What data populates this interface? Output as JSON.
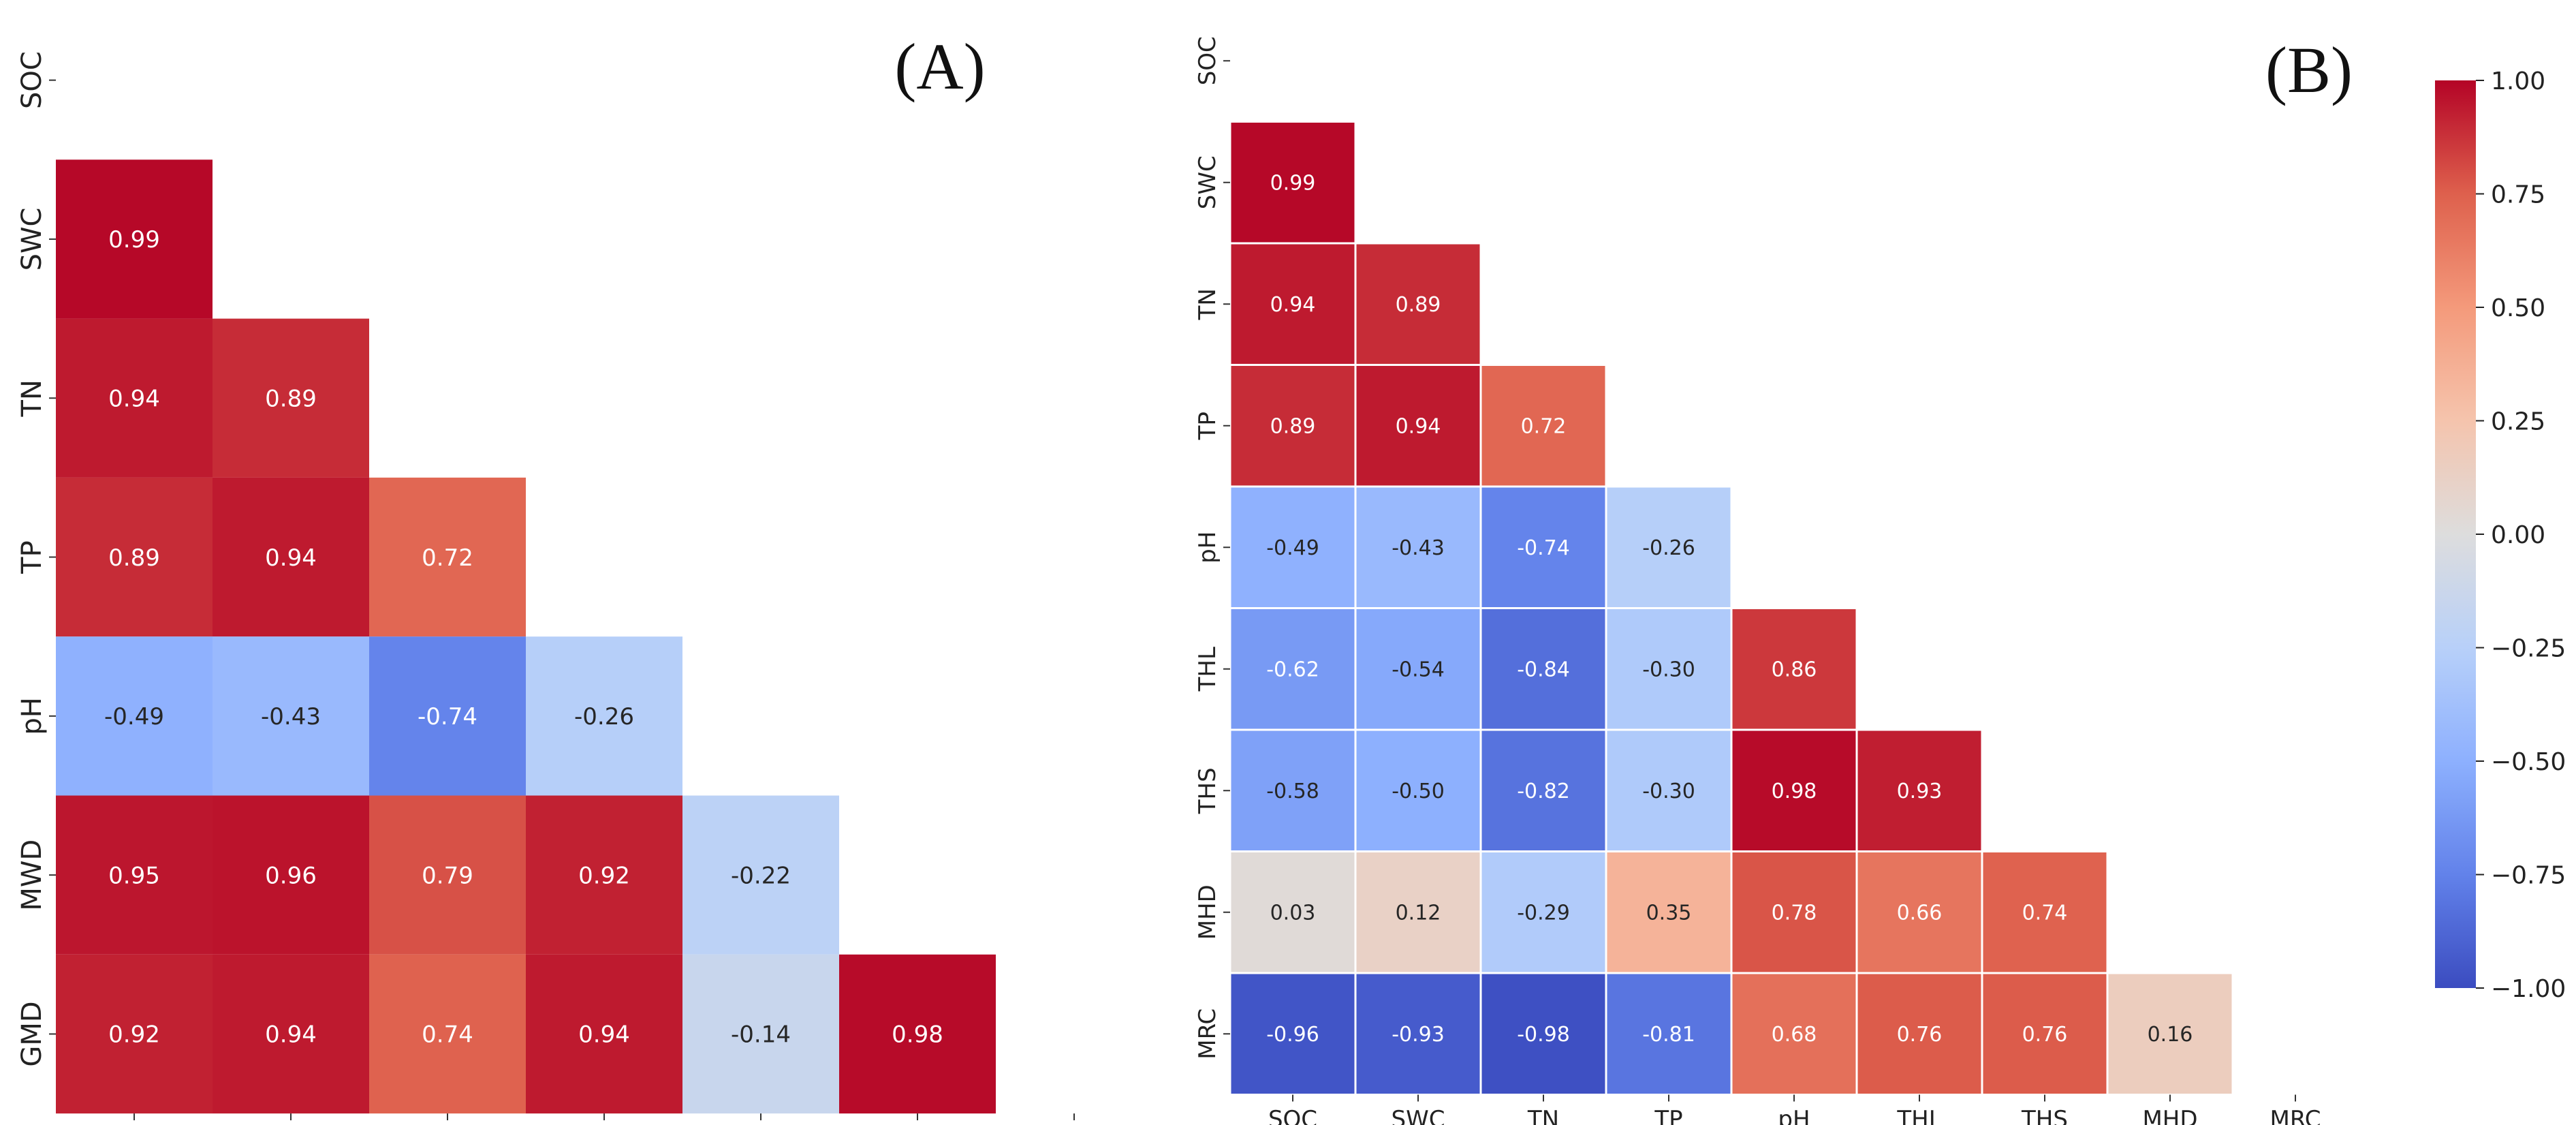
{
  "chart_data": [
    {
      "type": "heatmap",
      "title": "(A)",
      "variables": [
        "SOC",
        "SWC",
        "TN",
        "TP",
        "pH",
        "MWD",
        "GMD"
      ],
      "matrix": [
        [
          null,
          null,
          null,
          null,
          null,
          null,
          null
        ],
        [
          0.99,
          null,
          null,
          null,
          null,
          null,
          null
        ],
        [
          0.94,
          0.89,
          null,
          null,
          null,
          null,
          null
        ],
        [
          0.89,
          0.94,
          0.72,
          null,
          null,
          null,
          null
        ],
        [
          -0.49,
          -0.43,
          -0.74,
          -0.26,
          null,
          null,
          null
        ],
        [
          0.95,
          0.96,
          0.79,
          0.92,
          -0.22,
          null,
          null
        ],
        [
          0.92,
          0.94,
          0.74,
          0.94,
          -0.14,
          0.98,
          null
        ]
      ],
      "labels": [
        [
          null,
          null,
          null,
          null,
          null,
          null,
          null
        ],
        [
          "0.99",
          null,
          null,
          null,
          null,
          null,
          null
        ],
        [
          "0.94",
          "0.89",
          null,
          null,
          null,
          null,
          null
        ],
        [
          "0.89",
          "0.94",
          "0.72",
          null,
          null,
          null,
          null
        ],
        [
          "-0.49",
          "-0.43",
          "-0.74",
          "-0.26",
          null,
          null,
          null
        ],
        [
          "0.95",
          "0.96",
          "0.79",
          "0.92",
          "-0.22",
          null,
          null
        ],
        [
          "0.92",
          "0.94",
          "0.74",
          "0.94",
          "-0.14",
          "0.98",
          null
        ]
      ],
      "cell_borders": false,
      "vmin": -1,
      "vmax": 1,
      "colormap": "coolwarm"
    },
    {
      "type": "heatmap",
      "title": "(B)",
      "variables": [
        "SOC",
        "SWC",
        "TN",
        "TP",
        "pH",
        "THL",
        "THS",
        "MHD",
        "MRC"
      ],
      "matrix": [
        [
          null,
          null,
          null,
          null,
          null,
          null,
          null,
          null,
          null
        ],
        [
          0.99,
          null,
          null,
          null,
          null,
          null,
          null,
          null,
          null
        ],
        [
          0.94,
          0.89,
          null,
          null,
          null,
          null,
          null,
          null,
          null
        ],
        [
          0.89,
          0.94,
          0.72,
          null,
          null,
          null,
          null,
          null,
          null
        ],
        [
          -0.49,
          -0.43,
          -0.74,
          -0.26,
          null,
          null,
          null,
          null,
          null
        ],
        [
          -0.62,
          -0.54,
          -0.84,
          -0.3,
          0.86,
          null,
          null,
          null,
          null
        ],
        [
          -0.58,
          -0.5,
          -0.82,
          -0.3,
          0.98,
          0.93,
          null,
          null,
          null
        ],
        [
          0.03,
          0.12,
          -0.29,
          0.35,
          0.78,
          0.66,
          0.74,
          null,
          null
        ],
        [
          -0.96,
          -0.93,
          -0.98,
          -0.81,
          0.68,
          0.76,
          0.76,
          0.16,
          null
        ]
      ],
      "labels": [
        [
          null,
          null,
          null,
          null,
          null,
          null,
          null,
          null,
          null
        ],
        [
          "0.99",
          null,
          null,
          null,
          null,
          null,
          null,
          null,
          null
        ],
        [
          "0.94",
          "0.89",
          null,
          null,
          null,
          null,
          null,
          null,
          null
        ],
        [
          "0.89",
          "0.94",
          "0.72",
          null,
          null,
          null,
          null,
          null,
          null
        ],
        [
          "-0.49",
          "-0.43",
          "-0.74",
          "-0.26",
          null,
          null,
          null,
          null,
          null
        ],
        [
          "-0.62",
          "-0.54",
          "-0.84",
          "-0.30",
          "0.86",
          null,
          null,
          null,
          null
        ],
        [
          "-0.58",
          "-0.50",
          "-0.82",
          "-0.30",
          "0.98",
          "0.93",
          null,
          null,
          null
        ],
        [
          "0.03",
          "0.12",
          "-0.29",
          "0.35",
          "0.78",
          "0.66",
          "0.74",
          null,
          null
        ],
        [
          "-0.96",
          "-0.93",
          "-0.98",
          "-0.81",
          "0.68",
          "0.76",
          "0.76",
          "0.16",
          null
        ]
      ],
      "cell_borders": true,
      "vmin": -1,
      "vmax": 1,
      "colormap": "coolwarm"
    }
  ],
  "colorbar": {
    "range": [
      -1,
      1
    ],
    "ticks": [
      1,
      0.75,
      0.5,
      0.25,
      0,
      -0.25,
      -0.5,
      -0.75,
      -1
    ],
    "tick_labels": [
      "1.00",
      "0.75",
      "0.50",
      "0.25",
      "0.00",
      "−0.25",
      "−0.50",
      "−0.75",
      "−1.00"
    ],
    "colormap": "coolwarm"
  },
  "colors": {
    "dark_text": "#262626",
    "light_text": "#ffffff",
    "tick_color": "#333333",
    "border": "#ffffff"
  }
}
